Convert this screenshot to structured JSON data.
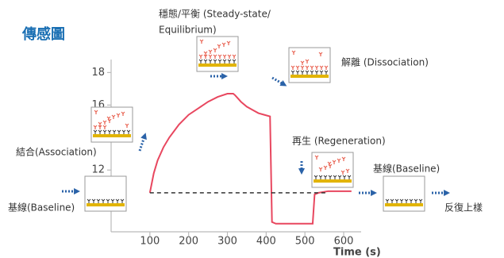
{
  "chart_data": {
    "type": "line",
    "title": "傳感圖",
    "x_label": "Time (s)",
    "x": [
      100,
      110,
      120,
      135,
      150,
      175,
      200,
      225,
      250,
      275,
      300,
      315,
      320,
      335,
      350,
      365,
      380,
      395,
      410,
      415,
      425,
      450,
      475,
      500,
      520,
      525,
      535,
      560,
      590,
      620
    ],
    "series": [
      {
        "color": "#e8475f",
        "dashed": false,
        "values": [
          10.6,
          11.8,
          12.6,
          13.4,
          14.0,
          14.8,
          15.4,
          15.8,
          16.2,
          16.5,
          16.7,
          16.7,
          16.6,
          16.2,
          15.9,
          15.7,
          15.5,
          15.4,
          15.3,
          8.8,
          8.7,
          8.7,
          8.7,
          8.7,
          8.7,
          10.5,
          10.6,
          10.7,
          10.7,
          10.7
        ]
      },
      {
        "color": "#333333",
        "dashed": true,
        "values": [
          10.6,
          10.6,
          10.6,
          10.6,
          10.6,
          10.6,
          10.6,
          10.6,
          10.6,
          10.6,
          10.6,
          10.6,
          10.6,
          10.6,
          10.6,
          10.6,
          10.6,
          10.6,
          10.6,
          10.6,
          10.6,
          10.6,
          10.6,
          10.6,
          10.6,
          10.6,
          10.6,
          10.6,
          null,
          null
        ]
      }
    ],
    "xlim": [
      0,
      645
    ],
    "xticks": [
      100,
      200,
      300,
      400,
      500,
      600
    ],
    "ylim": [
      8.2,
      18.8
    ],
    "yticks": [
      12,
      16,
      18
    ],
    "annotations": {
      "steady_state": [
        "穩態/平衡 (Steady-state/",
        "Equilibrium)"
      ],
      "dissociation": "解離 (Dissociation)",
      "association": "結合(Association)",
      "regeneration": "再生 (Regeneration)",
      "baseline_right": "基線(Baseline)",
      "baseline_left": "基線(Baseline)",
      "repeat": "反復上樣"
    }
  }
}
